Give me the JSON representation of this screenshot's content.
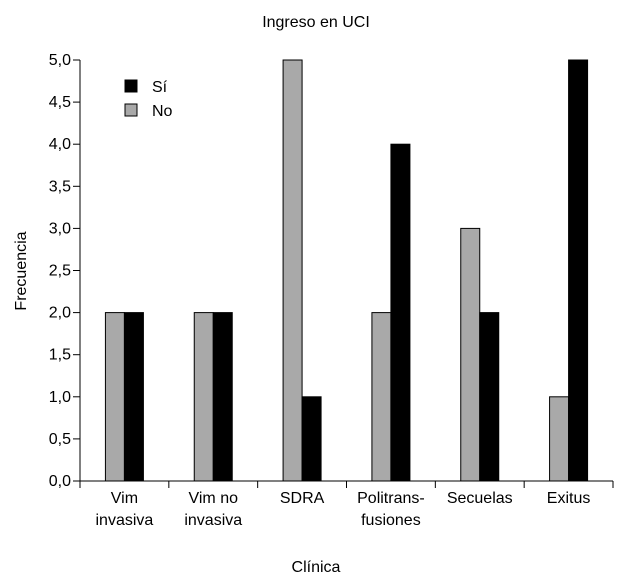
{
  "chart_data": {
    "type": "bar",
    "title": "Ingreso en UCI",
    "xlabel": "Clínica",
    "ylabel": "Frecuencia",
    "categories": [
      [
        "Vim",
        "invasiva"
      ],
      [
        "Vim no",
        "invasiva"
      ],
      [
        "SDRA"
      ],
      [
        "Politrans-",
        "fusiones"
      ],
      [
        "Secuelas"
      ],
      [
        "Exitus"
      ]
    ],
    "series": [
      {
        "name": "No",
        "values": [
          2,
          2,
          5,
          2,
          3,
          1
        ],
        "color": "#a9a9a9"
      },
      {
        "name": "Sí",
        "values": [
          2,
          2,
          1,
          4,
          2,
          5
        ],
        "color": "#000000"
      }
    ],
    "legend_order": [
      "Sí",
      "No"
    ],
    "ylim": [
      0,
      5
    ],
    "yticks": [
      "0,0",
      "0,5",
      "1,0",
      "1,5",
      "2,0",
      "2,5",
      "3,0",
      "3,5",
      "4,0",
      "4,5",
      "5,0"
    ],
    "grid": false,
    "legend_position": "top-left"
  }
}
